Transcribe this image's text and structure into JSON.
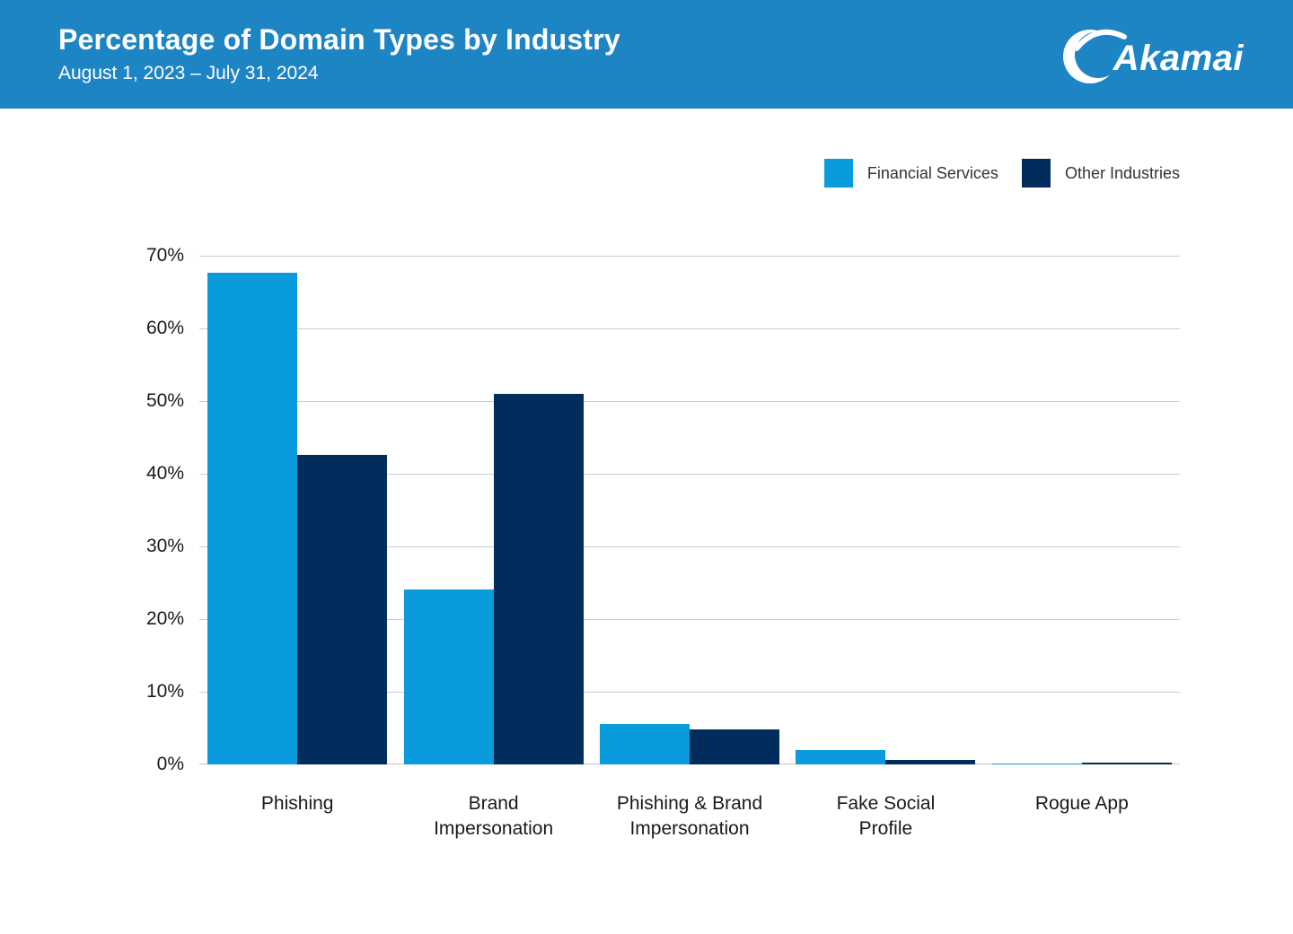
{
  "header": {
    "title": "Percentage of Domain Types by Industry",
    "date_range": "August 1, 2023 – July 31, 2024",
    "logo_text": "Akamai"
  },
  "colors": {
    "header_bg": "#1e85c5",
    "financial_services": "#0a9bdc",
    "other_industries": "#002d5c",
    "gridline": "#cccccc",
    "axis_text": "#1a1a1a"
  },
  "chart_data": {
    "type": "bar",
    "title": "Percentage of Domain Types by Industry",
    "subtitle": "August 1, 2023 – July 31, 2024",
    "categories": [
      "Phishing",
      "Brand\nImpersonation",
      "Phishing & Brand\nImpersonation",
      "Fake Social\nProfile",
      "Rogue App"
    ],
    "series": [
      {
        "name": "Financial Services",
        "color": "#0a9bdc",
        "values": [
          67.7,
          24.1,
          5.6,
          2.0,
          0.1
        ]
      },
      {
        "name": "Other Industries",
        "color": "#002d5c",
        "values": [
          42.6,
          51.0,
          4.8,
          0.6,
          0.2
        ]
      }
    ],
    "xlabel": "",
    "ylabel": "",
    "ylim": [
      0,
      70
    ],
    "ytick_step": 10,
    "ytick_suffix": "%",
    "grid": true,
    "legend_position": "top-right"
  }
}
